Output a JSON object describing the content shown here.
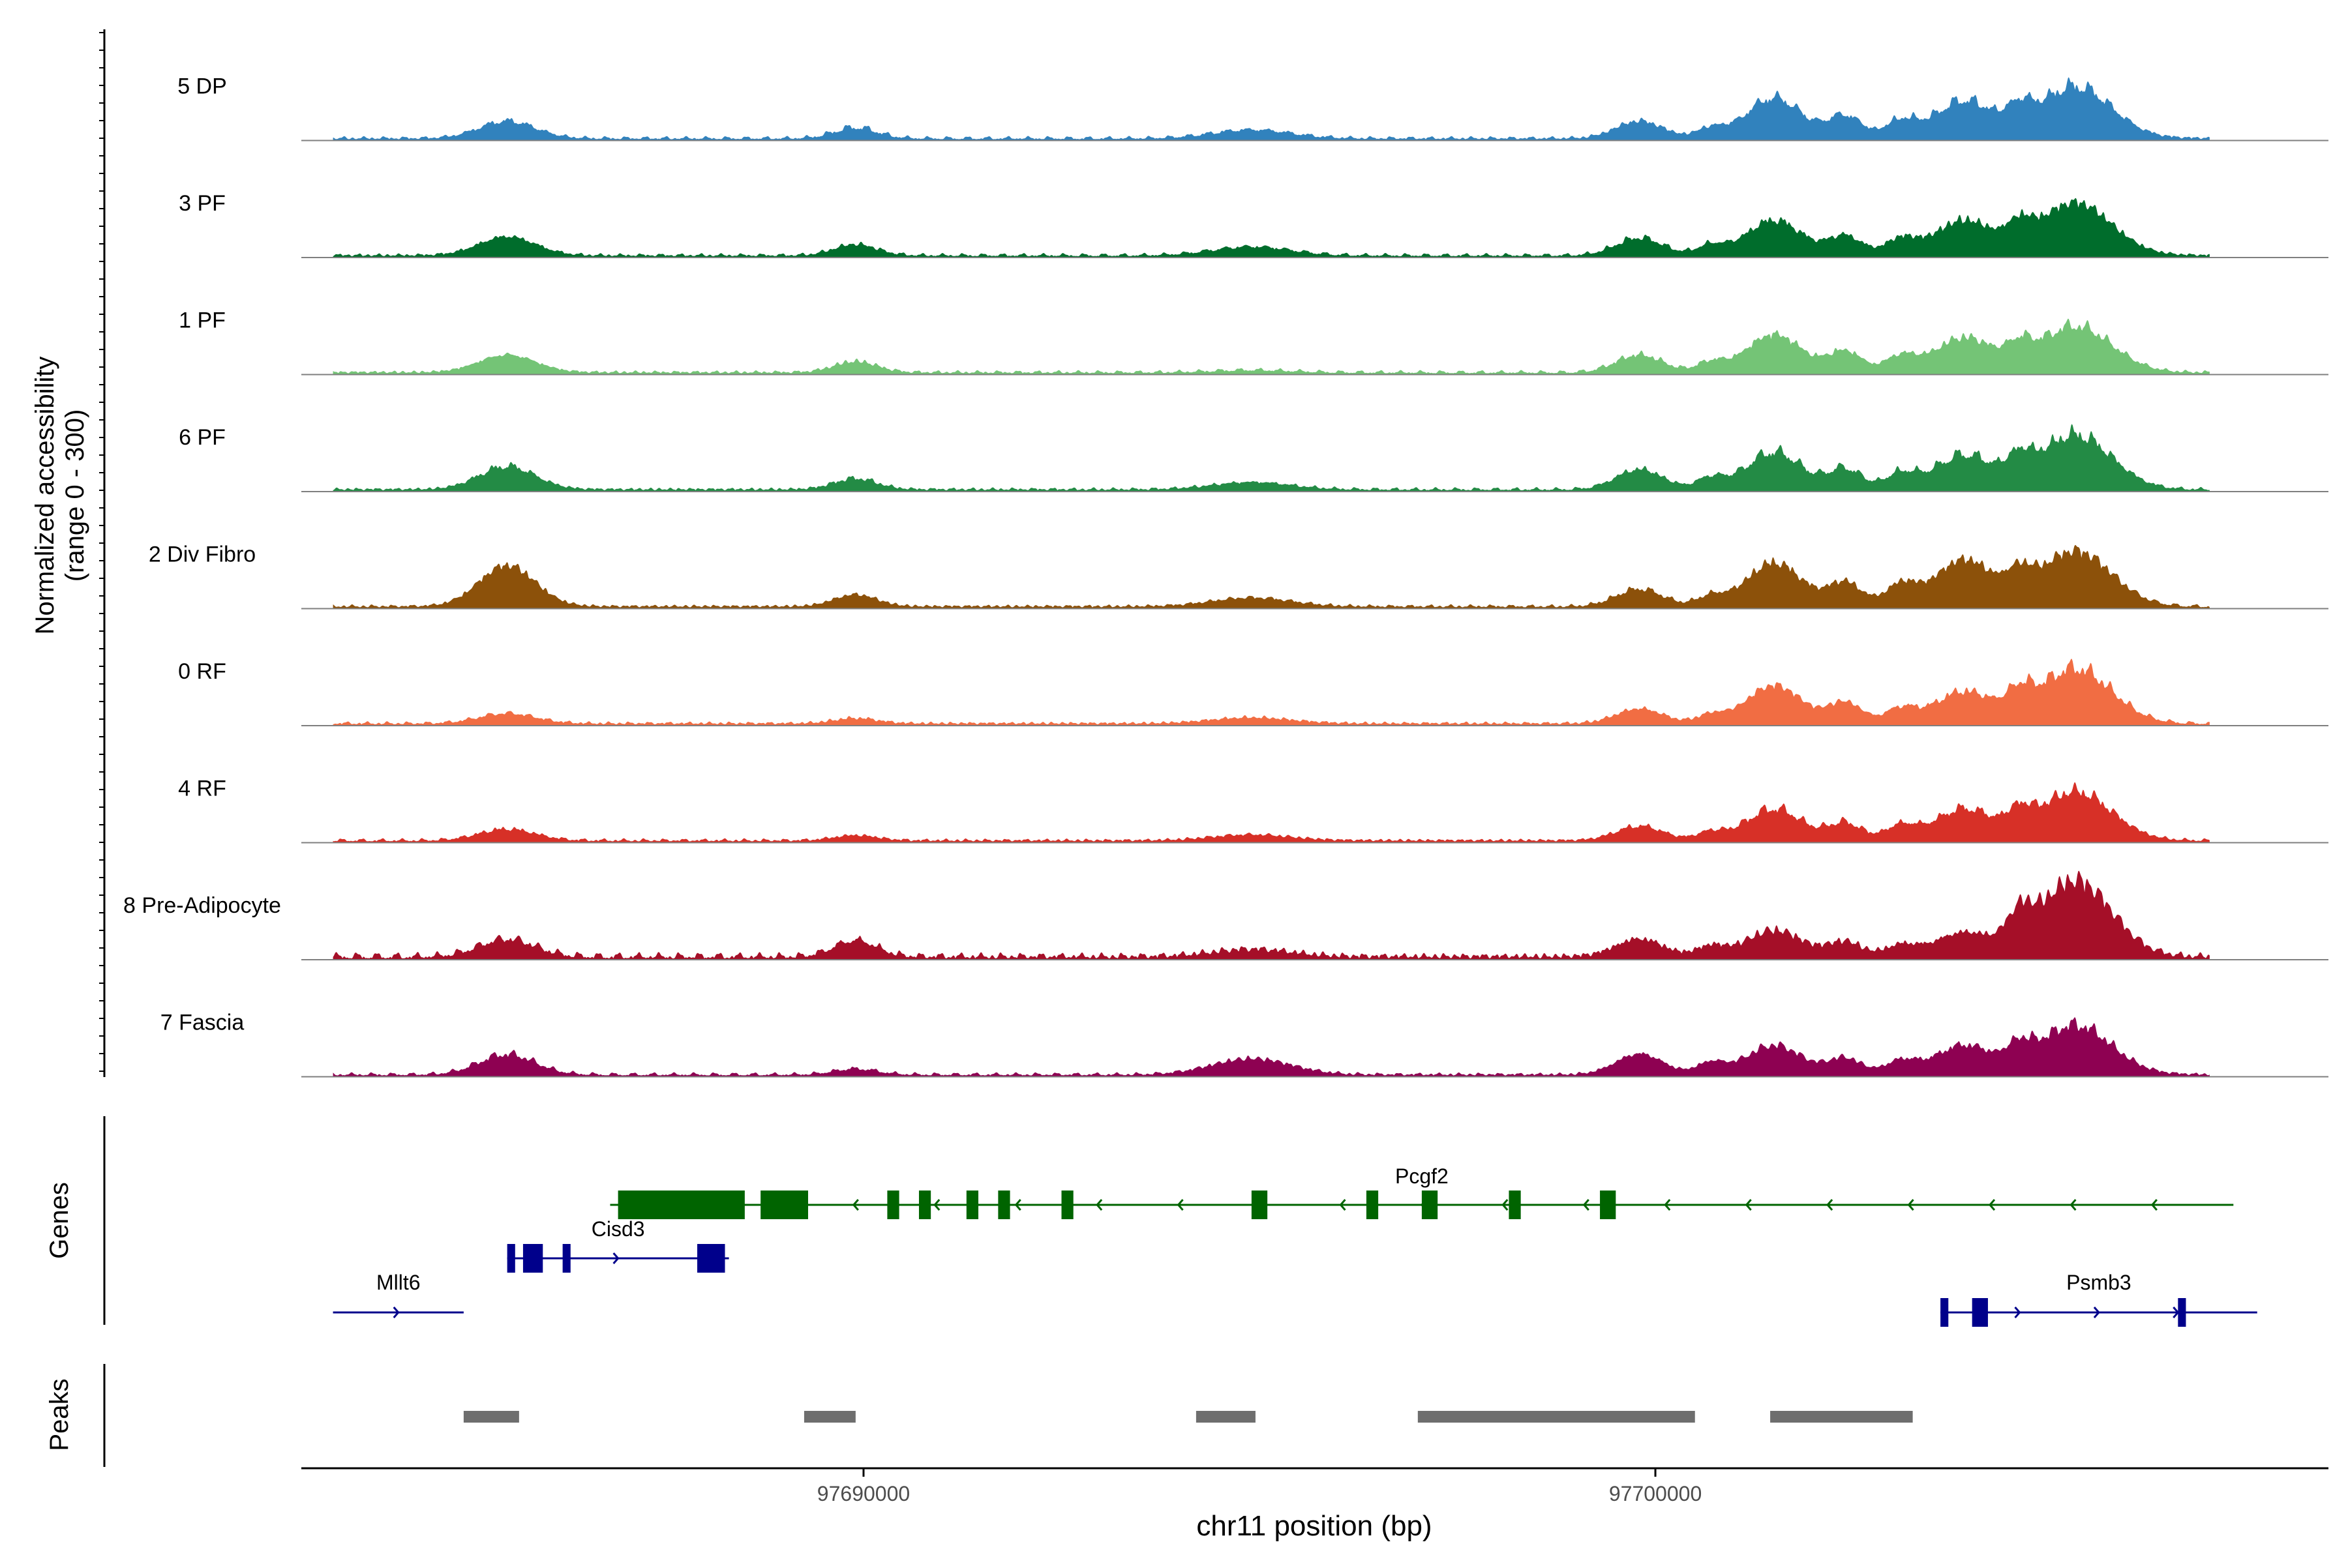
{
  "chart_data": {
    "type": "area",
    "title": "",
    "xlabel": "chr11 position (bp)",
    "xlim": [
      97682900,
      97708500
    ],
    "x_ticks": [
      97690000,
      97700000
    ],
    "x_tick_labels": [
      "97690000",
      "97700000"
    ],
    "ylabel_line1": "Normalized accessibility",
    "ylabel_line2": "(range 0 - 300)",
    "ylim": [
      0,
      300
    ],
    "peak_positions": [
      97685500,
      97689900,
      97694900,
      97699800,
      97701500,
      97703900,
      97705300
    ],
    "series": [
      {
        "name": "5 DP",
        "color": "#3182bd",
        "peak_heights": [
          60,
          38,
          30,
          60,
          140,
          130,
          180
        ],
        "background": [
          97683300,
          97707000
        ]
      },
      {
        "name": "3 PF",
        "color": "#006d2c",
        "peak_heights": [
          64,
          38,
          30,
          60,
          120,
          120,
          180
        ],
        "background": [
          97683300,
          97707000
        ]
      },
      {
        "name": "1 PF",
        "color": "#74c476",
        "peak_heights": [
          60,
          38,
          8,
          60,
          130,
          120,
          160
        ],
        "background": [
          97683300,
          97707000
        ]
      },
      {
        "name": "6 PF",
        "color": "#238b45",
        "peak_heights": [
          80,
          38,
          25,
          70,
          130,
          120,
          190
        ],
        "background": [
          97683300,
          97707000
        ]
      },
      {
        "name": "2 Div Fibro",
        "color": "#8c510a",
        "peak_heights": [
          140,
          40,
          30,
          60,
          150,
          160,
          190
        ],
        "background": [
          97683300,
          97707000
        ]
      },
      {
        "name": "0 RF",
        "color": "#f16d43",
        "peak_heights": [
          35,
          18,
          20,
          50,
          130,
          110,
          190
        ],
        "background": [
          97683300,
          97707000
        ]
      },
      {
        "name": "4 RF",
        "color": "#d73027",
        "peak_heights": [
          40,
          18,
          20,
          50,
          110,
          110,
          170
        ],
        "background": [
          97683300,
          97707000
        ]
      },
      {
        "name": "8 Pre-Adipocyte",
        "color": "#a50f28",
        "peak_heights": [
          60,
          55,
          25,
          60,
          90,
          80,
          260
        ],
        "background": [
          97683300,
          97707000
        ]
      },
      {
        "name": "7 Fascia",
        "color": "#8e0152",
        "peak_heights": [
          70,
          20,
          55,
          70,
          100,
          100,
          170
        ],
        "background": [
          97683300,
          97707000
        ]
      }
    ],
    "genes_label": "Genes",
    "genes": [
      {
        "name": "Pcgf2",
        "color": "#006400",
        "strand": "-",
        "start": 97686800,
        "end": 97707300,
        "exons": [
          [
            97686900,
            97688500
          ],
          [
            97688700,
            97689300
          ],
          [
            97690300,
            97690450
          ],
          [
            97690700,
            97690850
          ],
          [
            97691300,
            97691450
          ],
          [
            97691700,
            97691850
          ],
          [
            97692500,
            97692650
          ],
          [
            97694900,
            97695100
          ],
          [
            97696350,
            97696500
          ],
          [
            97697050,
            97697250
          ],
          [
            97698150,
            97698300
          ],
          [
            97699300,
            97699500
          ]
        ]
      },
      {
        "name": "Cisd3",
        "color": "#00008b",
        "strand": "+",
        "start": 97685500,
        "end": 97688300,
        "exons": [
          [
            97685500,
            97685600
          ],
          [
            97685700,
            97685950
          ],
          [
            97686200,
            97686300
          ],
          [
            97687900,
            97688250
          ]
        ]
      },
      {
        "name": "Mllt6",
        "color": "#00008b",
        "strand": "+",
        "start": 97683300,
        "end": 97684950,
        "exons": []
      },
      {
        "name": "Psmb3",
        "color": "#00008b",
        "strand": "+",
        "start": 97703600,
        "end": 97707600,
        "exons": [
          [
            97703600,
            97703700
          ],
          [
            97704000,
            97704200
          ],
          [
            97706600,
            97706700
          ]
        ]
      }
    ],
    "peaks_label": "Peaks",
    "peaks": [
      [
        97684950,
        97685650
      ],
      [
        97689250,
        97689900
      ],
      [
        97694200,
        97694950
      ],
      [
        97697000,
        97700500
      ],
      [
        97701450,
        97703250
      ]
    ]
  }
}
